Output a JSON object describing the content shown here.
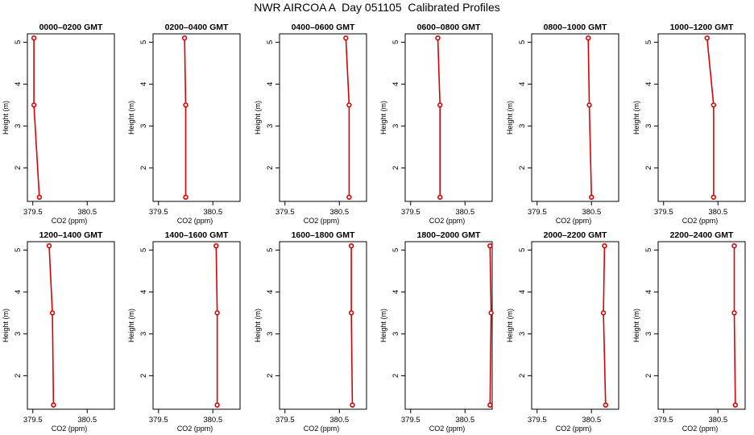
{
  "title": "NWR AIRCOA A  Day 051105  Calibrated Profiles",
  "colors": {
    "profile": "#dd0000",
    "axis": "#000000",
    "background": "#ffffff"
  },
  "chart_data": {
    "type": "line",
    "shared": {
      "xlabel": "CO2 (ppm)",
      "ylabel": "Height (m)",
      "xlim": [
        379.4,
        381.0
      ],
      "ylim": [
        1.2,
        5.2
      ],
      "xticks": [
        379.5,
        380.5
      ],
      "xtick_labels": [
        "379.5",
        "380.5"
      ],
      "yticks": [
        2,
        3,
        4,
        5
      ],
      "ytick_labels": [
        "2",
        "3",
        "4",
        "5"
      ],
      "heights": [
        5.1,
        3.5,
        1.3
      ]
    },
    "panels": [
      {
        "title": "0000–0200 GMT",
        "co2": [
          379.52,
          379.52,
          379.62
        ]
      },
      {
        "title": "0200–0400 GMT",
        "co2": [
          379.98,
          380.0,
          380.0
        ]
      },
      {
        "title": "0400–0600 GMT",
        "co2": [
          380.62,
          380.68,
          380.68
        ]
      },
      {
        "title": "0600–0800 GMT",
        "co2": [
          380.0,
          380.04,
          380.04
        ]
      },
      {
        "title": "0800–1000 GMT",
        "co2": [
          380.44,
          380.46,
          380.5
        ]
      },
      {
        "title": "1000–1200 GMT",
        "co2": [
          380.3,
          380.42,
          380.42
        ]
      },
      {
        "title": "1200–1400 GMT",
        "co2": [
          379.8,
          379.86,
          379.88
        ]
      },
      {
        "title": "1400–1600 GMT",
        "co2": [
          380.56,
          380.58,
          380.58
        ]
      },
      {
        "title": "1600–1800 GMT",
        "co2": [
          380.72,
          380.72,
          380.74
        ]
      },
      {
        "title": "1800–2000 GMT",
        "co2": [
          380.96,
          380.98,
          380.96
        ]
      },
      {
        "title": "2000–2200 GMT",
        "co2": [
          380.74,
          380.72,
          380.76
        ]
      },
      {
        "title": "2200–2400 GMT",
        "co2": [
          380.8,
          380.8,
          380.82
        ]
      }
    ]
  }
}
